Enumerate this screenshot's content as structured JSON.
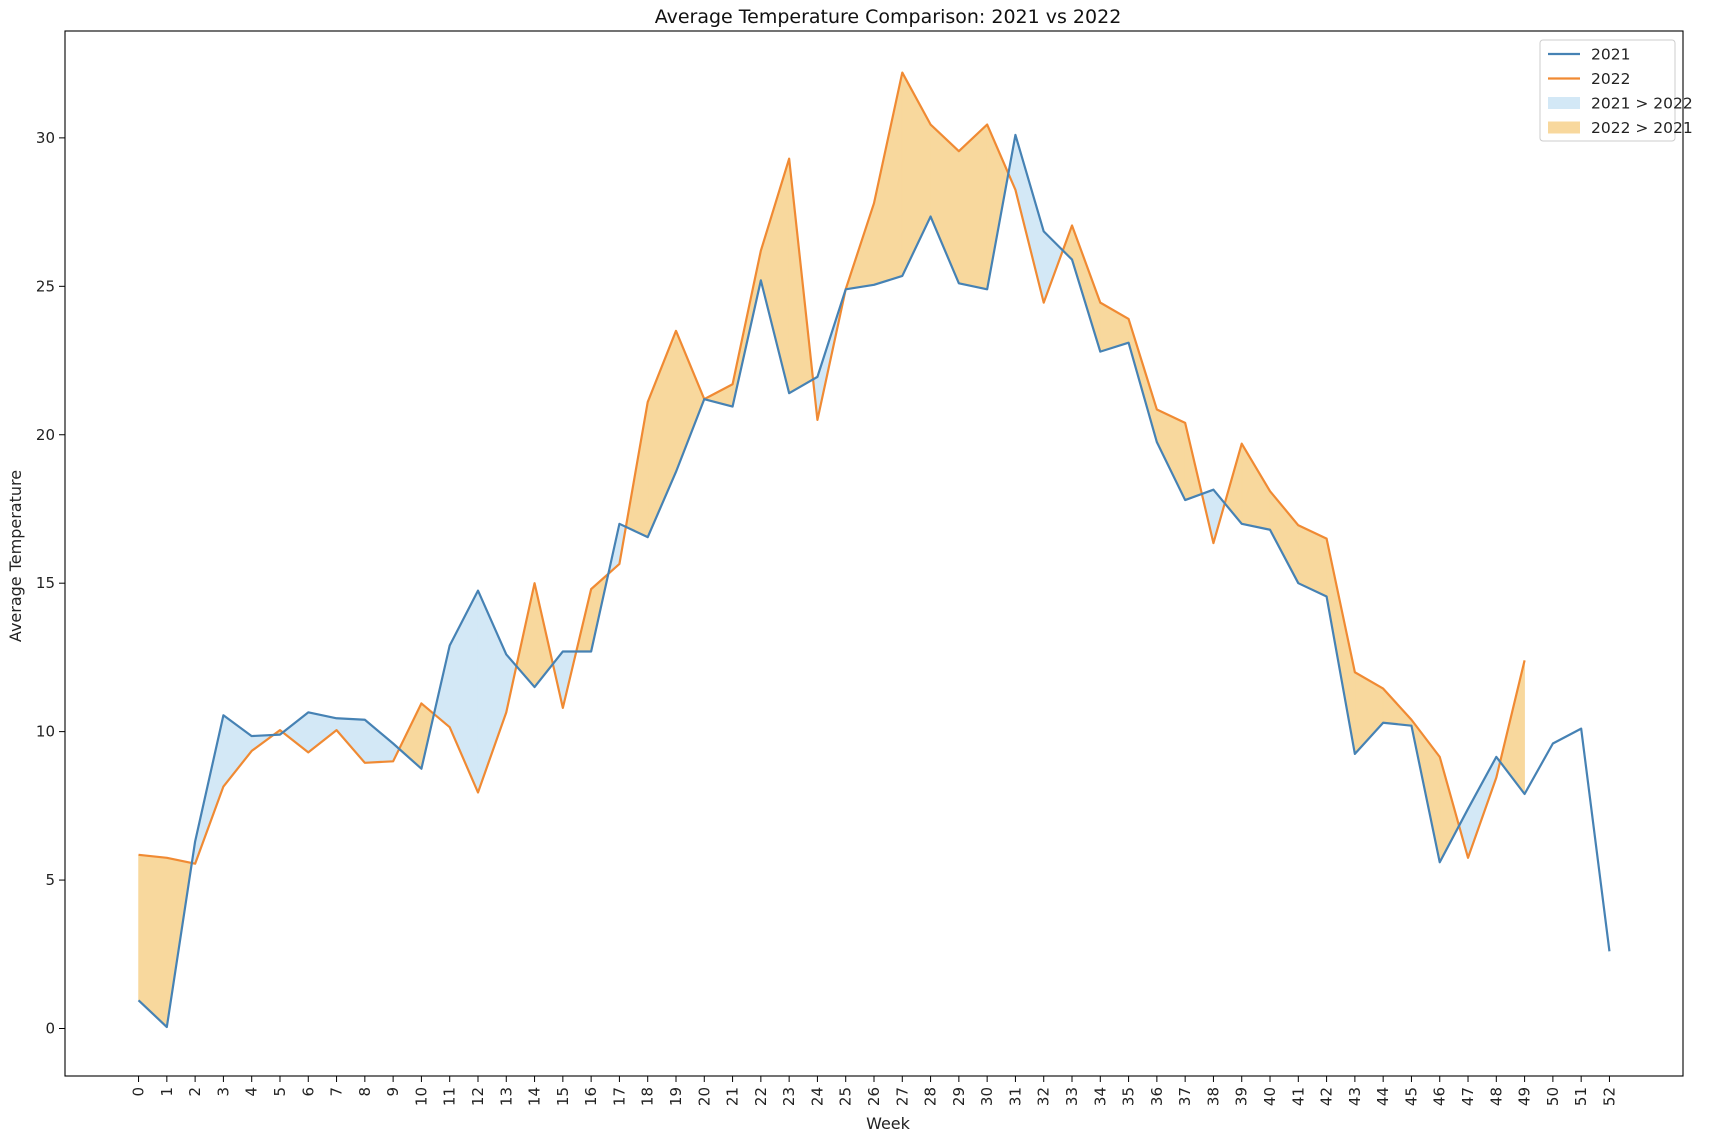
{
  "chart_data": {
    "type": "line",
    "title": "Average Temperature Comparison: 2021 vs 2022",
    "xlabel": "Week",
    "ylabel": "Average Temperature",
    "xlim": [
      -2.6,
      54.6
    ],
    "ylim": [
      -1.6,
      33.6
    ],
    "yticks": [
      0,
      5,
      10,
      15,
      20,
      25,
      30
    ],
    "legend_position": "top-right",
    "grid": false,
    "series": [
      {
        "name": "2021",
        "color": "#4682b4",
        "x": [
          0,
          1,
          2,
          3,
          4,
          5,
          6,
          7,
          8,
          9,
          10,
          11,
          12,
          13,
          14,
          15,
          16,
          17,
          18,
          19,
          20,
          21,
          22,
          23,
          24,
          25,
          26,
          27,
          28,
          29,
          30,
          31,
          32,
          33,
          34,
          35,
          36,
          37,
          38,
          39,
          40,
          41,
          42,
          43,
          44,
          45,
          46,
          47,
          48,
          49,
          50,
          51,
          52
        ],
        "values": [
          0.95,
          0.05,
          6.3,
          10.55,
          9.85,
          9.9,
          10.65,
          10.45,
          10.4,
          9.6,
          8.75,
          12.9,
          14.75,
          12.6,
          11.5,
          12.7,
          12.7,
          17.0,
          16.55,
          18.75,
          21.2,
          20.95,
          25.2,
          21.4,
          21.95,
          24.9,
          25.05,
          25.35,
          27.35,
          25.1,
          24.9,
          30.1,
          26.85,
          25.9,
          22.8,
          23.1,
          19.75,
          17.8,
          18.15,
          17.0,
          16.8,
          15.0,
          14.55,
          9.25,
          10.3,
          10.2,
          5.6,
          7.4,
          9.15,
          7.9,
          9.6,
          10.1,
          2.6
        ]
      },
      {
        "name": "2022",
        "color": "#f08a33",
        "x": [
          0,
          1,
          2,
          3,
          4,
          5,
          6,
          7,
          8,
          9,
          10,
          11,
          12,
          13,
          14,
          15,
          16,
          17,
          18,
          19,
          20,
          21,
          22,
          23,
          24,
          25,
          26,
          27,
          28,
          29,
          30,
          31,
          32,
          33,
          34,
          35,
          36,
          37,
          38,
          39,
          40,
          41,
          42,
          43,
          44,
          45,
          46,
          47,
          48,
          49
        ],
        "values": [
          5.85,
          5.75,
          5.55,
          8.15,
          9.35,
          10.05,
          9.3,
          10.05,
          8.95,
          9.0,
          10.95,
          10.15,
          7.95,
          10.65,
          15.0,
          10.8,
          14.8,
          15.65,
          21.1,
          23.5,
          21.2,
          21.7,
          26.2,
          29.3,
          20.5,
          24.9,
          27.8,
          32.2,
          30.45,
          29.55,
          30.45,
          28.25,
          24.45,
          27.05,
          24.45,
          23.9,
          20.85,
          20.4,
          16.35,
          19.7,
          18.1,
          16.95,
          16.5,
          12.0,
          11.45,
          10.4,
          9.15,
          5.75,
          8.45,
          12.4
        ]
      }
    ],
    "fills": [
      {
        "label": "2021 > 2022",
        "color": "#d3e8f6"
      },
      {
        "label": "2022 > 2021",
        "color": "#f8d89d"
      }
    ]
  }
}
